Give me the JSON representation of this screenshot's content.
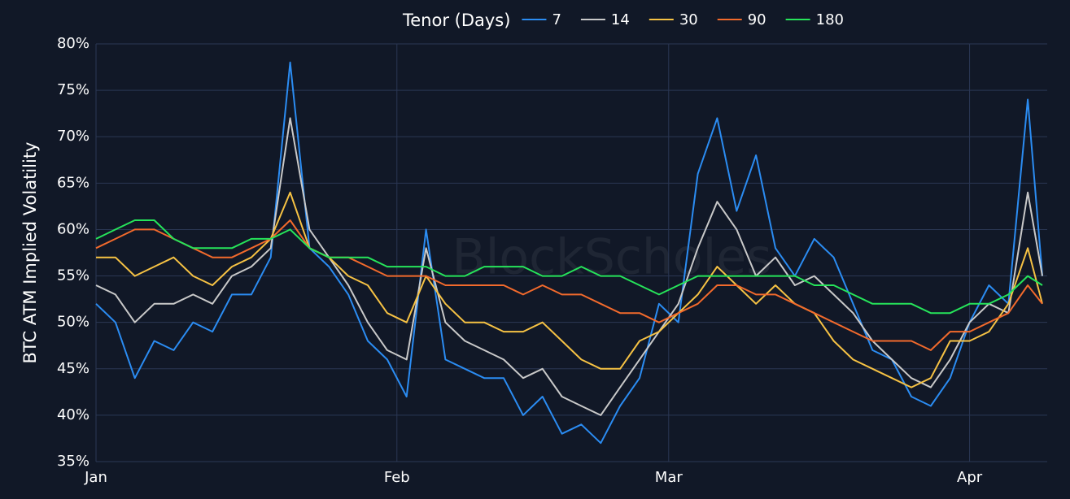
{
  "chart_data": {
    "type": "line",
    "y_label": "BTC ATM Implied Volatility",
    "legend_title": "Tenor (Days)",
    "legend": "top",
    "watermark": "BlockScholes",
    "grid": true,
    "x": [
      0,
      2,
      4,
      6,
      8,
      10,
      12,
      14,
      16,
      18,
      20,
      22,
      24,
      26,
      28,
      30,
      32,
      34,
      36,
      38,
      40,
      42,
      44,
      46,
      48,
      50,
      52,
      54,
      56,
      58,
      60,
      62,
      64,
      66,
      68,
      70,
      72,
      74,
      76,
      78,
      80,
      82,
      84,
      86,
      88,
      90,
      92,
      94,
      96,
      97.5
    ],
    "xlim": [
      0,
      98
    ],
    "xticks": [
      {
        "value": 0,
        "label": "Jan"
      },
      {
        "value": 31,
        "label": "Feb"
      },
      {
        "value": 59,
        "label": "Mar"
      },
      {
        "value": 90,
        "label": "Apr"
      }
    ],
    "ylim": [
      35,
      80
    ],
    "yticks": [
      {
        "value": 35,
        "label": "35%"
      },
      {
        "value": 40,
        "label": "40%"
      },
      {
        "value": 45,
        "label": "45%"
      },
      {
        "value": 50,
        "label": "50%"
      },
      {
        "value": 55,
        "label": "55%"
      },
      {
        "value": 60,
        "label": "60%"
      },
      {
        "value": 65,
        "label": "65%"
      },
      {
        "value": 70,
        "label": "70%"
      },
      {
        "value": 75,
        "label": "75%"
      },
      {
        "value": 80,
        "label": "80%"
      }
    ],
    "series": [
      {
        "name": "7",
        "color": "#2b8cf2",
        "values": [
          52,
          50,
          44,
          48,
          47,
          50,
          49,
          53,
          53,
          57,
          78,
          58,
          56,
          53,
          48,
          46,
          42,
          60,
          46,
          45,
          44,
          44,
          40,
          42,
          38,
          39,
          37,
          41,
          44,
          52,
          50,
          66,
          72,
          62,
          68,
          58,
          55,
          59,
          57,
          52,
          47,
          46,
          42,
          41,
          44,
          50,
          54,
          52,
          74,
          55
        ]
      },
      {
        "name": "14",
        "color": "#c9c9c9",
        "values": [
          54,
          53,
          50,
          52,
          52,
          53,
          52,
          55,
          56,
          58,
          72,
          60,
          57,
          54,
          50,
          47,
          46,
          58,
          50,
          48,
          47,
          46,
          44,
          45,
          42,
          41,
          40,
          43,
          46,
          49,
          52,
          58,
          63,
          60,
          55,
          57,
          54,
          55,
          53,
          51,
          48,
          46,
          44,
          43,
          46,
          50,
          52,
          51,
          64,
          55
        ]
      },
      {
        "name": "30",
        "color": "#f6c244",
        "values": [
          57,
          57,
          55,
          56,
          57,
          55,
          54,
          56,
          57,
          59,
          64,
          58,
          57,
          55,
          54,
          51,
          50,
          55,
          52,
          50,
          50,
          49,
          49,
          50,
          48,
          46,
          45,
          45,
          48,
          49,
          51,
          53,
          56,
          54,
          52,
          54,
          52,
          51,
          48,
          46,
          45,
          44,
          43,
          44,
          48,
          48,
          49,
          52,
          58,
          52
        ]
      },
      {
        "name": "90",
        "color": "#f26a2c",
        "values": [
          58,
          59,
          60,
          60,
          59,
          58,
          57,
          57,
          58,
          59,
          61,
          58,
          57,
          57,
          56,
          55,
          55,
          55,
          54,
          54,
          54,
          54,
          53,
          54,
          53,
          53,
          52,
          51,
          51,
          50,
          51,
          52,
          54,
          54,
          53,
          53,
          52,
          51,
          50,
          49,
          48,
          48,
          48,
          47,
          49,
          49,
          50,
          51,
          54,
          52
        ]
      },
      {
        "name": "180",
        "color": "#26e45a",
        "values": [
          59,
          60,
          61,
          61,
          59,
          58,
          58,
          58,
          59,
          59,
          60,
          58,
          57,
          57,
          57,
          56,
          56,
          56,
          55,
          55,
          56,
          56,
          56,
          55,
          55,
          56,
          55,
          55,
          54,
          53,
          54,
          55,
          55,
          55,
          55,
          55,
          55,
          54,
          54,
          53,
          52,
          52,
          52,
          51,
          51,
          52,
          52,
          53,
          55,
          54
        ]
      }
    ]
  }
}
